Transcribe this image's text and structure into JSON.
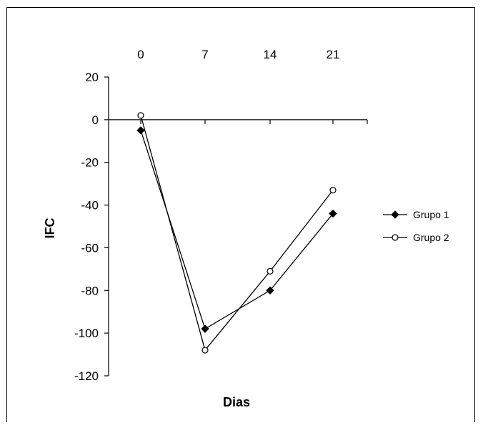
{
  "chart_data": {
    "type": "line",
    "xlabel": "Dias",
    "ylabel": "IFC",
    "x": [
      0,
      7,
      14,
      21
    ],
    "xticks": [
      "0",
      "7",
      "14",
      "21"
    ],
    "xaxis_position": "top",
    "ylim": [
      -120,
      20
    ],
    "yticks": [
      20,
      0,
      -20,
      -40,
      -60,
      -80,
      -100,
      -120
    ],
    "ytick_labels": [
      "20",
      "0",
      "-20",
      "-40",
      "-60",
      "-80",
      "-100",
      "-120"
    ],
    "grid": false,
    "legend": "right",
    "series": [
      {
        "name": "Grupo 1",
        "marker": "filled-diamond",
        "values": [
          -5,
          -98,
          -80,
          -44
        ],
        "color": "#000000"
      },
      {
        "name": "Grupo 2",
        "marker": "open-circle",
        "values": [
          2,
          -108,
          -71,
          -33
        ],
        "color": "#000000"
      }
    ]
  }
}
